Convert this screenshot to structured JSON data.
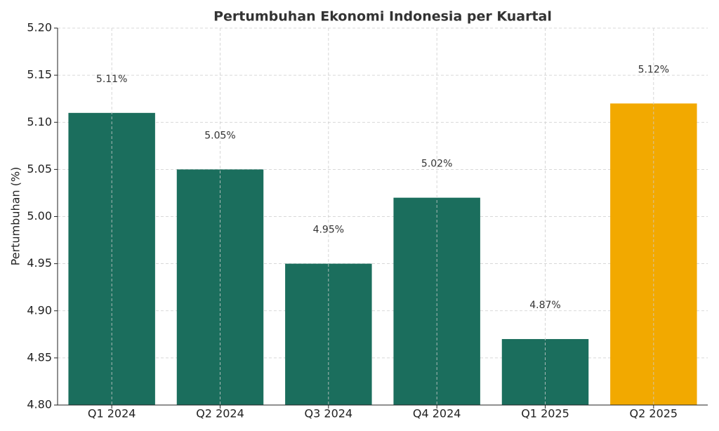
{
  "chart_data": {
    "type": "bar",
    "title": "Pertumbuhan Ekonomi Indonesia per Kuartal",
    "y_label": "Pertumbuhan (%)",
    "categories": [
      "Q1 2024",
      "Q2 2024",
      "Q3 2024",
      "Q4 2024",
      "Q1 2025",
      "Q2 2025"
    ],
    "values": [
      5.11,
      5.05,
      4.95,
      5.02,
      4.87,
      5.12
    ],
    "value_labels": [
      "5.11%",
      "5.05%",
      "4.95%",
      "5.02%",
      "4.87%",
      "5.12%"
    ],
    "colors": [
      "#1b6e5d",
      "#1b6e5d",
      "#1b6e5d",
      "#1b6e5d",
      "#1b6e5d",
      "#f2a900"
    ],
    "ylim": [
      4.8,
      5.2
    ],
    "yticks": [
      {
        "value": 4.8,
        "label": "4.80"
      },
      4.85,
      {
        "value": 4.9,
        "label": "4.90"
      },
      4.95,
      {
        "value": 5.0,
        "label": "5.00"
      },
      5.05,
      {
        "value": 5.1,
        "label": "5.10"
      },
      5.15,
      {
        "value": 5.2,
        "label": "5.20"
      }
    ],
    "grid": true
  }
}
